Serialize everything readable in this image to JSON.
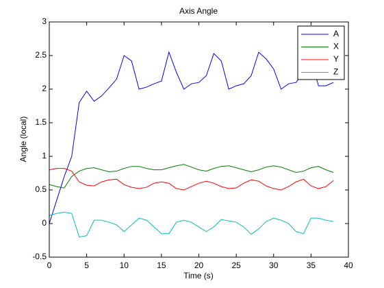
{
  "chart_data": {
    "type": "line",
    "title": "Axis Angle",
    "x_label": "Time (s)",
    "y_label": "Angle (local)",
    "x": [
      0,
      1,
      2,
      3,
      4,
      5,
      6,
      7,
      8,
      9,
      10,
      11,
      12,
      13,
      14,
      15,
      16,
      17,
      18,
      19,
      20,
      21,
      22,
      23,
      24,
      25,
      26,
      27,
      28,
      29,
      30,
      31,
      32,
      33,
      34,
      35,
      36,
      37,
      38
    ],
    "series": [
      {
        "name": "A",
        "color": "#0000ff",
        "values": [
          0,
          0.35,
          0.7,
          1.0,
          1.8,
          1.97,
          1.82,
          1.9,
          2.02,
          2.15,
          2.5,
          2.42,
          2.0,
          2.03,
          2.08,
          2.12,
          2.55,
          2.25,
          2.0,
          2.08,
          2.1,
          2.2,
          2.53,
          2.42,
          2.0,
          2.05,
          2.08,
          2.2,
          2.55,
          2.45,
          2.3,
          2.0,
          2.08,
          2.1,
          2.25,
          2.45,
          2.05,
          2.05,
          2.1
        ]
      },
      {
        "name": "X",
        "color": "#008000",
        "values": [
          0.58,
          0.55,
          0.53,
          0.7,
          0.78,
          0.82,
          0.83,
          0.8,
          0.77,
          0.78,
          0.82,
          0.85,
          0.85,
          0.82,
          0.8,
          0.8,
          0.83,
          0.86,
          0.88,
          0.84,
          0.8,
          0.78,
          0.82,
          0.85,
          0.86,
          0.83,
          0.8,
          0.77,
          0.8,
          0.84,
          0.86,
          0.84,
          0.8,
          0.76,
          0.78,
          0.83,
          0.85,
          0.8,
          0.76
        ]
      },
      {
        "name": "Y",
        "color": "#ff0000",
        "values": [
          0.8,
          0.82,
          0.82,
          0.78,
          0.62,
          0.57,
          0.56,
          0.62,
          0.65,
          0.66,
          0.58,
          0.54,
          0.52,
          0.54,
          0.6,
          0.62,
          0.6,
          0.52,
          0.5,
          0.55,
          0.6,
          0.63,
          0.6,
          0.55,
          0.52,
          0.53,
          0.6,
          0.65,
          0.63,
          0.56,
          0.52,
          0.5,
          0.55,
          0.62,
          0.66,
          0.56,
          0.52,
          0.55,
          0.64
        ]
      },
      {
        "name": "Z",
        "color": "#00bfbf",
        "values": [
          0.12,
          0.15,
          0.17,
          0.15,
          -0.2,
          -0.18,
          0.05,
          0.05,
          0.02,
          -0.02,
          -0.12,
          -0.02,
          0.08,
          0.05,
          -0.05,
          -0.15,
          -0.15,
          0.02,
          0.05,
          0.02,
          -0.05,
          -0.12,
          -0.05,
          0.06,
          0.04,
          0.02,
          -0.05,
          -0.16,
          -0.08,
          0.03,
          0.08,
          0.05,
          0,
          -0.12,
          -0.15,
          0.08,
          0.08,
          0.05,
          0.03
        ]
      }
    ],
    "xlim": [
      0,
      40
    ],
    "xticks": [
      0,
      5,
      10,
      15,
      20,
      25,
      30,
      35,
      40
    ],
    "ylim": [
      -0.5,
      3
    ],
    "yticks": [
      -0.5,
      0,
      0.5,
      1,
      1.5,
      2,
      2.5,
      3
    ],
    "grid": false,
    "legend": "northeast"
  }
}
